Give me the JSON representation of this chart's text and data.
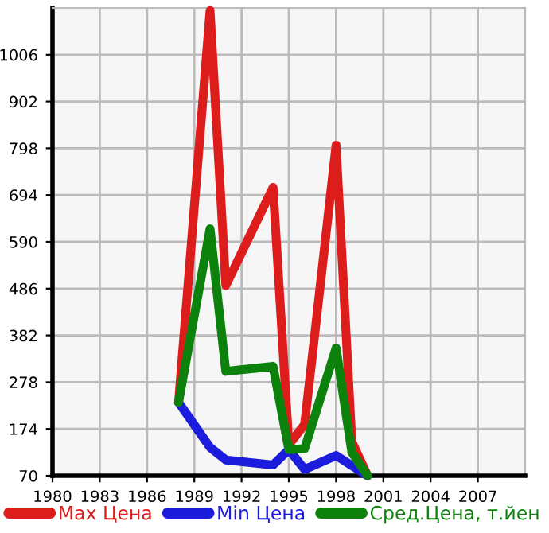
{
  "chart_data": {
    "type": "line",
    "x": [
      1988,
      1990,
      1991,
      1994,
      1995,
      1996,
      1998,
      1999,
      2000
    ],
    "series": [
      {
        "name": "Max Цена",
        "color": "#dd1c1c",
        "values": [
          233,
          1104,
          493,
          711,
          139,
          184,
          805,
          146,
          70
        ]
      },
      {
        "name": "Min Цена",
        "color": "#1c1cdd",
        "values": [
          233,
          133,
          105,
          94,
          128,
          84,
          115,
          null,
          70
        ]
      },
      {
        "name": "Сред.Цена, т.йен",
        "color": "#0c820c",
        "values": [
          233,
          619,
          302,
          313,
          128,
          130,
          354,
          122,
          70
        ]
      }
    ],
    "xlim": [
      1980,
      2010
    ],
    "xticks": [
      1980,
      1983,
      1986,
      1989,
      1992,
      1995,
      1998,
      2001,
      2004,
      2007
    ],
    "ylim": [
      70,
      1110
    ],
    "yticks": [
      70,
      174,
      278,
      382,
      486,
      590,
      694,
      798,
      902,
      1006
    ],
    "grid": true,
    "legend": "bottom",
    "marker": "none",
    "line_style": "solid"
  }
}
